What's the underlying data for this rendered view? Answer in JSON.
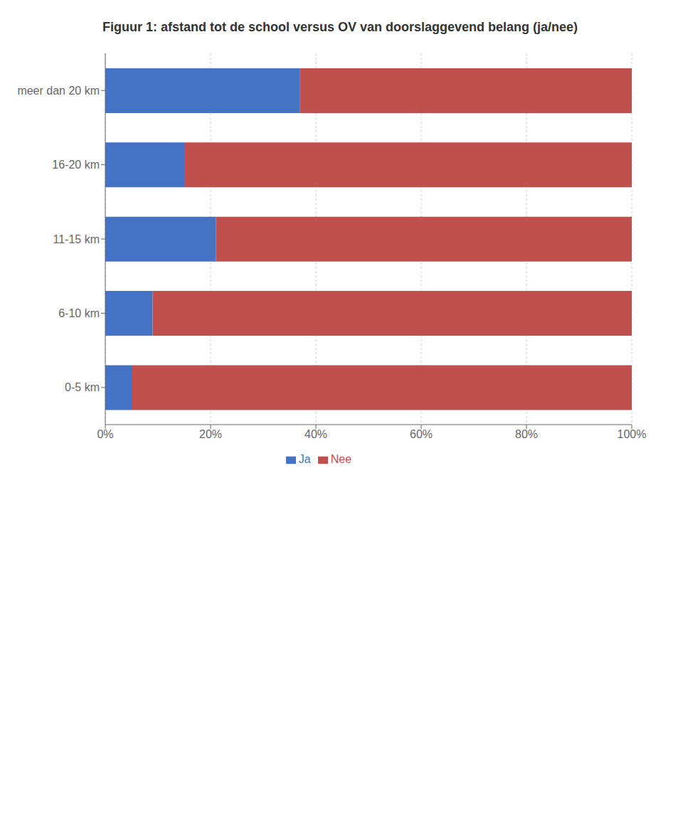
{
  "chart_data": {
    "type": "bar",
    "title": "Figuur 1: afstand tot de school versus OV van doorslaggevend belang (ja/nee)",
    "orientation": "horizontal",
    "stacked": true,
    "categories": [
      "meer dan 20 km",
      "16-20 km",
      "11-15 km",
      "6-10 km",
      "0-5 km"
    ],
    "series": [
      {
        "name": "Ja",
        "color": "#4472C4",
        "values": [
          37,
          15,
          21,
          9,
          5
        ]
      },
      {
        "name": "Nee",
        "color": "#C0504D",
        "values": [
          63,
          85,
          79,
          91,
          95
        ]
      }
    ],
    "xlim": [
      0,
      100
    ],
    "xticks": [
      {
        "value": 0,
        "label": "0%"
      },
      {
        "value": 20,
        "label": "20%"
      },
      {
        "value": 40,
        "label": "40%"
      },
      {
        "value": 60,
        "label": "60%"
      },
      {
        "value": 80,
        "label": "80%"
      },
      {
        "value": 100,
        "label": "100%"
      }
    ],
    "grid": true,
    "legend": "bottom"
  }
}
